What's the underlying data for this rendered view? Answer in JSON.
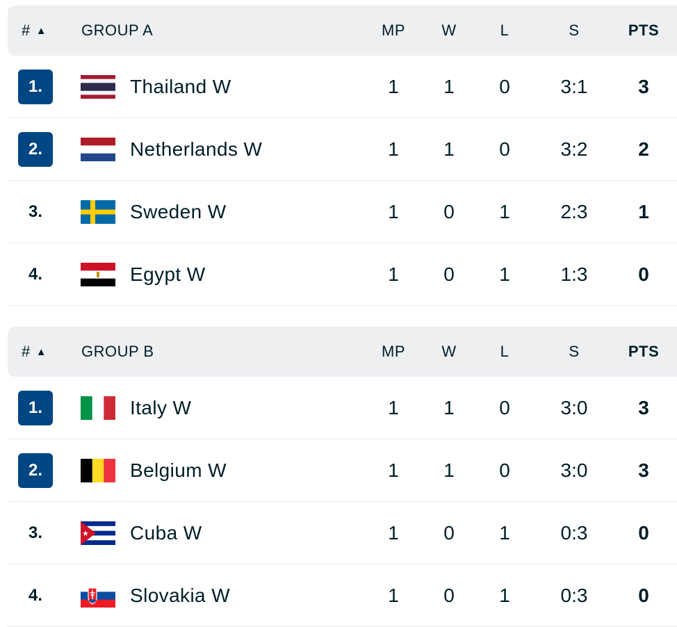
{
  "columns": {
    "rank": "#",
    "mp": "MP",
    "w": "W",
    "l": "L",
    "s": "S",
    "pts": "PTS"
  },
  "groups": [
    {
      "name": "GROUP A",
      "rows": [
        {
          "rank": "1.",
          "team": "Thailand W",
          "flag": "thailand-flag",
          "mp": "1",
          "w": "1",
          "l": "0",
          "s": "3:1",
          "pts": "3",
          "qualified": true
        },
        {
          "rank": "2.",
          "team": "Netherlands W",
          "flag": "netherlands-flag",
          "mp": "1",
          "w": "1",
          "l": "0",
          "s": "3:2",
          "pts": "2",
          "qualified": true
        },
        {
          "rank": "3.",
          "team": "Sweden W",
          "flag": "sweden-flag",
          "mp": "1",
          "w": "0",
          "l": "1",
          "s": "2:3",
          "pts": "1",
          "qualified": false
        },
        {
          "rank": "4.",
          "team": "Egypt W",
          "flag": "egypt-flag",
          "mp": "1",
          "w": "0",
          "l": "1",
          "s": "1:3",
          "pts": "0",
          "qualified": false
        }
      ]
    },
    {
      "name": "GROUP B",
      "rows": [
        {
          "rank": "1.",
          "team": "Italy W",
          "flag": "italy-flag",
          "mp": "1",
          "w": "1",
          "l": "0",
          "s": "3:0",
          "pts": "3",
          "qualified": true
        },
        {
          "rank": "2.",
          "team": "Belgium W",
          "flag": "belgium-flag",
          "mp": "1",
          "w": "1",
          "l": "0",
          "s": "3:0",
          "pts": "3",
          "qualified": true
        },
        {
          "rank": "3.",
          "team": "Cuba W",
          "flag": "cuba-flag",
          "mp": "1",
          "w": "0",
          "l": "1",
          "s": "0:3",
          "pts": "0",
          "qualified": false
        },
        {
          "rank": "4.",
          "team": "Slovakia W",
          "flag": "slovakia-flag",
          "mp": "1",
          "w": "0",
          "l": "1",
          "s": "0:3",
          "pts": "0",
          "qualified": false
        }
      ]
    }
  ],
  "colors": {
    "qualified_badge": "#004682",
    "header_bg": "#eeeff1",
    "text": "#001e28"
  }
}
